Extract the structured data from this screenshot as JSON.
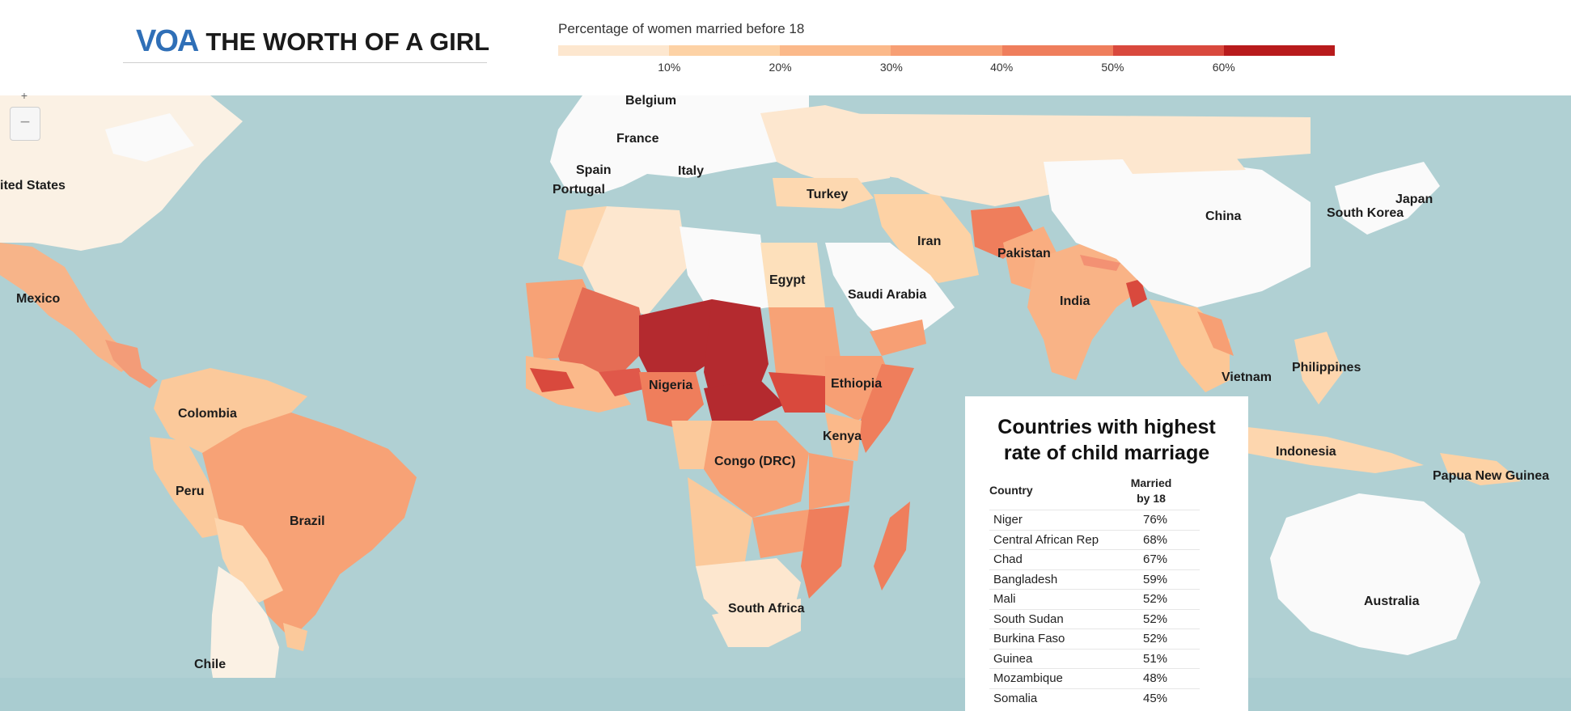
{
  "header": {
    "logo_mark": "VOA",
    "title": "THE WORTH OF A GIRL"
  },
  "legend": {
    "title": "Percentage of women married before 18",
    "ticks": [
      "10%",
      "20%",
      "30%",
      "40%",
      "50%",
      "60%"
    ],
    "colors": [
      "#fde7cf",
      "#fdd2a5",
      "#fbb98a",
      "#f79f74",
      "#ef7e5c",
      "#d9493d",
      "#b81b1c"
    ]
  },
  "zoom": {
    "in_label": "+",
    "out_label": "−"
  },
  "map": {
    "ocean_color": "#a9ccd0",
    "land_no_data_color": "#fafafa",
    "country_labels": [
      "ited States",
      "Mexico",
      "Colombia",
      "Peru",
      "Brazil",
      "Chile",
      "Belgium",
      "France",
      "Spain",
      "Portugal",
      "Italy",
      "Turkey",
      "Iran",
      "Egypt",
      "Saudi Arabia",
      "Pakistan",
      "India",
      "China",
      "South Korea",
      "Japan",
      "Nigeria",
      "Ethiopia",
      "Kenya",
      "Congo (DRC)",
      "South Africa",
      "Vietnam",
      "Philippines",
      "Indonesia",
      "Papua New Guinea",
      "Australia"
    ]
  },
  "card": {
    "title_line1": "Countries with highest",
    "title_line2": "rate of child marriage",
    "col_country": "Country",
    "col_married_1": "Married",
    "col_married_2": "by 18",
    "rows": [
      {
        "country": "Niger",
        "pct": "76%"
      },
      {
        "country": "Central African Rep",
        "pct": "68%"
      },
      {
        "country": "Chad",
        "pct": "67%"
      },
      {
        "country": "Bangladesh",
        "pct": "59%"
      },
      {
        "country": "Mali",
        "pct": "52%"
      },
      {
        "country": "South Sudan",
        "pct": "52%"
      },
      {
        "country": "Burkina Faso",
        "pct": "52%"
      },
      {
        "country": "Guinea",
        "pct": "51%"
      },
      {
        "country": "Mozambique",
        "pct": "48%"
      },
      {
        "country": "Somalia",
        "pct": "45%"
      }
    ]
  }
}
